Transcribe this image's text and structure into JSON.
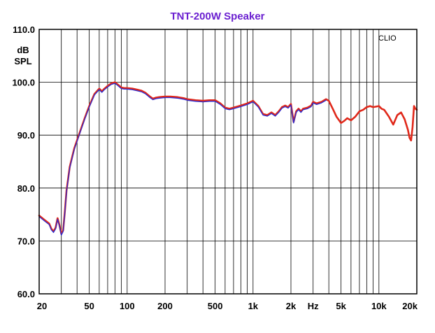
{
  "chart_data": {
    "type": "line",
    "title": "TNT-200W Speaker",
    "ylabel": "dB SPL",
    "xlabel": "Hz",
    "watermark": "CLIO",
    "x_scale": "log",
    "xlim": [
      20,
      20000
    ],
    "ylim": [
      60,
      110
    ],
    "grid": true,
    "y_ticks": [
      60,
      70,
      80,
      90,
      100,
      110
    ],
    "y_tick_labels": [
      "60.0",
      "70.0",
      "80.0",
      "90.0",
      "100.0",
      "110.0"
    ],
    "x_tick_labels": [
      {
        "value": 20,
        "label": "20"
      },
      {
        "value": 50,
        "label": "50"
      },
      {
        "value": 100,
        "label": "100"
      },
      {
        "value": 200,
        "label": "200"
      },
      {
        "value": 500,
        "label": "500"
      },
      {
        "value": 1000,
        "label": "1k"
      },
      {
        "value": 2000,
        "label": "2k"
      },
      {
        "value": 5000,
        "label": "5k"
      },
      {
        "value": 10000,
        "label": "10k"
      },
      {
        "value": 20000,
        "label": "20k"
      }
    ],
    "colors": {
      "red": "#e0281a",
      "blue": "#2a2ad0"
    },
    "series": [
      {
        "color": "red",
        "x": [
          20,
          22,
          24,
          25,
          26,
          27,
          28,
          29,
          30,
          31,
          32,
          33,
          35,
          38,
          42,
          46,
          50,
          55,
          60,
          63,
          66,
          70,
          75,
          80,
          85,
          90,
          95,
          100,
          110,
          120,
          130,
          140,
          150,
          160,
          170,
          180,
          200,
          220,
          250,
          280,
          300,
          350,
          400,
          450,
          500,
          550,
          600,
          650,
          700,
          800,
          900,
          1000,
          1100,
          1200,
          1300,
          1400,
          1500,
          1600,
          1700,
          1800,
          1900,
          2000,
          2100,
          2200,
          2300,
          2400,
          2500,
          2700,
          2900,
          3000,
          3200,
          3500,
          3800,
          4000,
          4300,
          4600,
          5000,
          5300,
          5600,
          6000,
          6500,
          7000,
          7500,
          8000,
          8500,
          9000,
          10000,
          10500,
          11000,
          12000,
          13000,
          14000,
          15000,
          16000,
          17000,
          17500,
          18000,
          18500,
          19000,
          19500,
          20000
        ],
        "y": [
          74.8,
          74.0,
          73.3,
          72.3,
          71.8,
          72.5,
          74.3,
          73.0,
          71.3,
          72.0,
          75.5,
          79.5,
          84.0,
          87.5,
          90.5,
          93.2,
          95.5,
          97.8,
          98.8,
          98.3,
          98.8,
          99.3,
          99.8,
          100.0,
          99.5,
          99.0,
          98.9,
          98.9,
          98.8,
          98.6,
          98.4,
          98.0,
          97.4,
          96.9,
          97.1,
          97.2,
          97.3,
          97.3,
          97.2,
          97.0,
          96.8,
          96.6,
          96.5,
          96.6,
          96.6,
          96.0,
          95.2,
          95.0,
          95.2,
          95.6,
          96.0,
          96.5,
          95.5,
          94.0,
          93.8,
          94.3,
          93.8,
          94.5,
          95.3,
          95.6,
          95.3,
          95.9,
          92.5,
          94.5,
          95.0,
          94.5,
          95.0,
          95.2,
          95.6,
          96.3,
          96.0,
          96.3,
          96.8,
          96.5,
          95.0,
          93.5,
          92.3,
          92.7,
          93.2,
          92.8,
          93.5,
          94.5,
          94.8,
          95.3,
          95.5,
          95.3,
          95.5,
          95.0,
          94.8,
          93.5,
          92.0,
          93.8,
          94.3,
          93.0,
          91.0,
          89.5,
          89.0,
          91.5,
          95.5,
          95.0,
          94.8
        ]
      },
      {
        "color": "blue",
        "x": [
          20,
          22,
          24,
          25,
          26,
          27,
          28,
          29,
          30,
          31,
          32,
          33,
          35,
          38,
          42,
          46,
          50,
          55,
          60,
          63,
          66,
          70,
          75,
          80,
          85,
          90,
          95,
          100,
          110,
          120,
          130,
          140,
          150,
          160,
          170,
          180,
          200,
          220,
          250,
          280,
          300,
          350,
          400,
          450,
          500,
          550,
          600,
          650,
          700,
          800,
          900,
          1000,
          1100,
          1200,
          1300,
          1400,
          1500,
          1600,
          1700,
          1800,
          1900,
          2000,
          2100,
          2200,
          2300,
          2400,
          2500,
          2700,
          2900,
          3000,
          3200,
          3500,
          3800
        ],
        "y": [
          74.6,
          73.8,
          73.1,
          72.1,
          71.6,
          72.3,
          74.1,
          72.8,
          71.1,
          71.8,
          75.3,
          79.3,
          83.8,
          87.3,
          90.3,
          93.0,
          95.3,
          97.6,
          98.6,
          98.1,
          98.6,
          99.1,
          99.6,
          99.8,
          99.3,
          98.8,
          98.7,
          98.7,
          98.6,
          98.4,
          98.2,
          97.8,
          97.2,
          96.7,
          96.9,
          97.0,
          97.1,
          97.1,
          97.0,
          96.8,
          96.6,
          96.4,
          96.3,
          96.4,
          96.4,
          95.8,
          95.0,
          94.8,
          95.0,
          95.4,
          95.8,
          96.3,
          95.3,
          93.8,
          93.6,
          94.1,
          93.6,
          94.3,
          95.1,
          95.4,
          95.1,
          95.7,
          92.3,
          94.3,
          94.8,
          94.3,
          94.8,
          95.0,
          95.4,
          96.1,
          95.8,
          96.1,
          96.6
        ]
      }
    ]
  }
}
